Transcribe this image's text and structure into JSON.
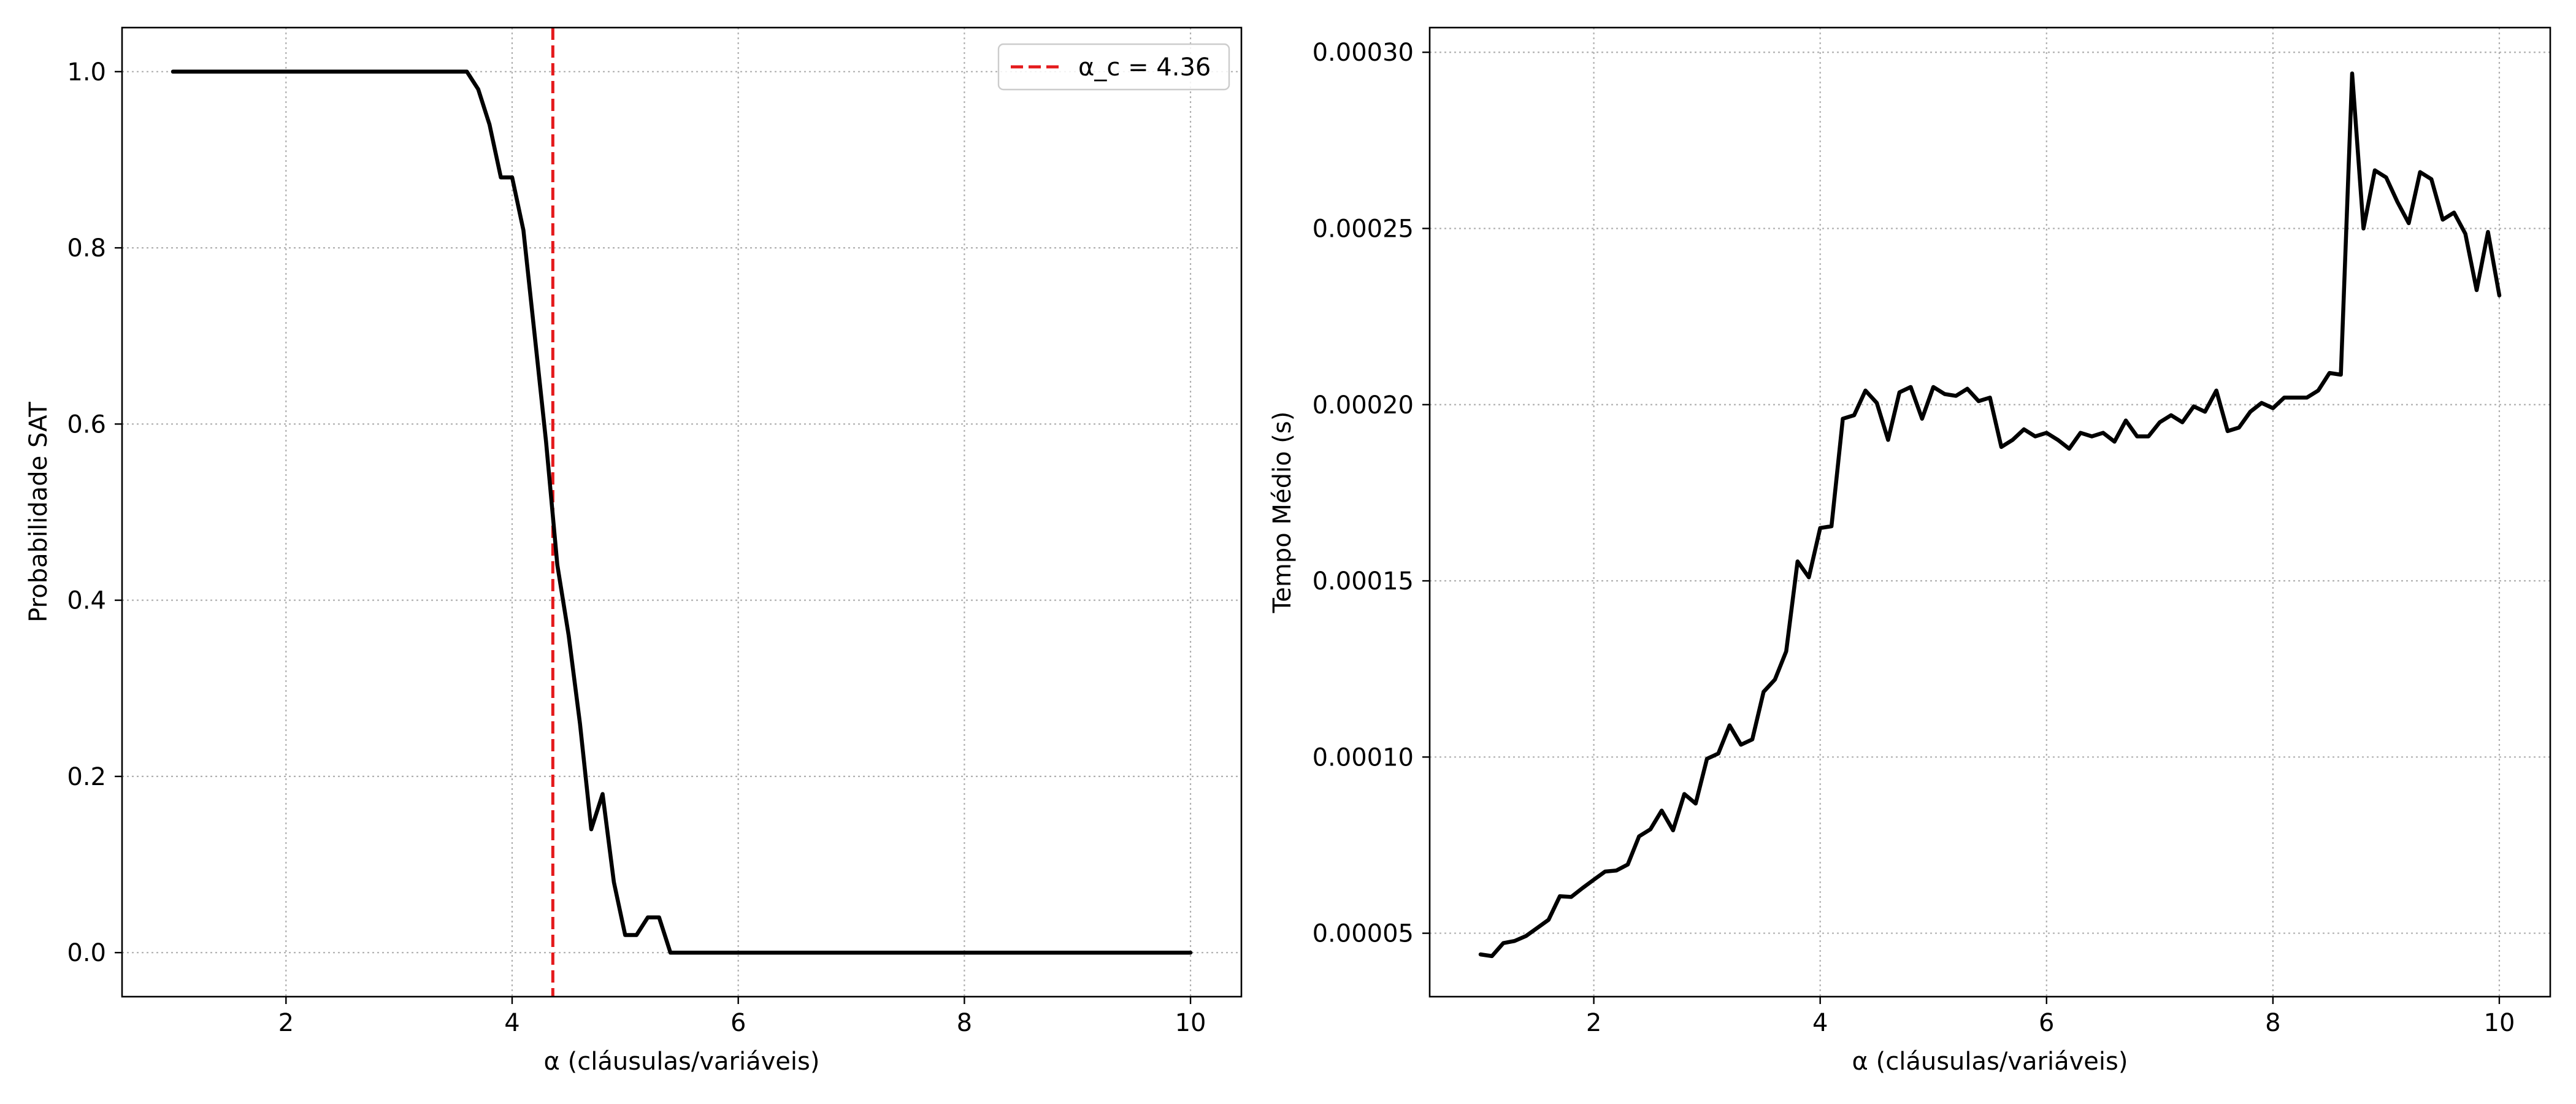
{
  "chart_data": [
    {
      "type": "line",
      "title": "",
      "xlabel": "α (cláusulas/variáveis)",
      "ylabel": "Probabilidade SAT",
      "xlim": [
        0.55,
        10.45
      ],
      "ylim": [
        -0.05,
        1.05
      ],
      "xticks": [
        2,
        4,
        6,
        8,
        10
      ],
      "xtick_labels": [
        "2",
        "4",
        "6",
        "8",
        "10"
      ],
      "yticks": [
        0.0,
        0.2,
        0.4,
        0.6,
        0.8,
        1.0
      ],
      "ytick_labels": [
        "0.0",
        "0.2",
        "0.4",
        "0.6",
        "0.8",
        "1.0"
      ],
      "grid": true,
      "legend": {
        "position": "top-right",
        "entries": [
          "α_c = 4.36"
        ]
      },
      "colors": {
        "series": "#000000",
        "threshold": "#e41a1c",
        "grid": "#b0b0b0"
      },
      "threshold": {
        "x": 4.36,
        "label": "α_c = 4.36",
        "style": "dashed"
      },
      "series": [
        {
          "x": [
            1.0,
            1.1,
            1.2,
            1.3,
            1.4,
            1.5,
            1.6,
            1.7,
            1.8,
            1.9,
            2.0,
            2.1,
            2.2,
            2.3,
            2.4,
            2.5,
            2.6,
            2.7,
            2.8,
            2.9,
            3.0,
            3.1,
            3.2,
            3.3,
            3.4,
            3.5,
            3.6,
            3.7,
            3.8,
            3.9,
            4.0,
            4.1,
            4.2,
            4.3,
            4.4,
            4.5,
            4.6,
            4.7,
            4.8,
            4.9,
            5.0,
            5.1,
            5.2,
            5.3,
            5.4,
            5.5,
            5.6,
            5.7,
            5.8,
            5.9,
            6.0,
            6.1,
            6.2,
            6.3,
            6.4,
            6.5,
            6.6,
            6.7,
            6.8,
            6.9,
            7.0,
            7.1,
            7.2,
            7.3,
            7.4,
            7.5,
            7.6,
            7.7,
            7.8,
            7.9,
            8.0,
            8.1,
            8.2,
            8.3,
            8.4,
            8.5,
            8.6,
            8.7,
            8.8,
            8.9,
            9.0,
            9.1,
            9.2,
            9.3,
            9.4,
            9.5,
            9.6,
            9.7,
            9.8,
            9.9,
            10.0
          ],
          "y": [
            1.0,
            1.0,
            1.0,
            1.0,
            1.0,
            1.0,
            1.0,
            1.0,
            1.0,
            1.0,
            1.0,
            1.0,
            1.0,
            1.0,
            1.0,
            1.0,
            1.0,
            1.0,
            1.0,
            1.0,
            1.0,
            1.0,
            1.0,
            1.0,
            1.0,
            1.0,
            1.0,
            0.98,
            0.94,
            0.88,
            0.88,
            0.82,
            0.7,
            0.58,
            0.44,
            0.36,
            0.26,
            0.14,
            0.18,
            0.08,
            0.02,
            0.02,
            0.04,
            0.04,
            0.0,
            0.0,
            0.0,
            0.0,
            0.0,
            0.0,
            0.0,
            0.0,
            0.0,
            0.0,
            0.0,
            0.0,
            0.0,
            0.0,
            0.0,
            0.0,
            0.0,
            0.0,
            0.0,
            0.0,
            0.0,
            0.0,
            0.0,
            0.0,
            0.0,
            0.0,
            0.0,
            0.0,
            0.0,
            0.0,
            0.0,
            0.0,
            0.0,
            0.0,
            0.0,
            0.0,
            0.0,
            0.0,
            0.0,
            0.0,
            0.0,
            0.0,
            0.0,
            0.0,
            0.0,
            0.0,
            0.0
          ]
        }
      ]
    },
    {
      "type": "line",
      "title": "",
      "xlabel": "α (cláusulas/variáveis)",
      "ylabel": "Tempo Médio (s)",
      "xlim": [
        0.55,
        10.45
      ],
      "ylim": [
        3.2e-05,
        0.000307
      ],
      "xticks": [
        2,
        4,
        6,
        8,
        10
      ],
      "xtick_labels": [
        "2",
        "4",
        "6",
        "8",
        "10"
      ],
      "yticks": [
        5e-05,
        0.0001,
        0.00015,
        0.0002,
        0.00025,
        0.0003
      ],
      "ytick_labels": [
        "0.00005",
        "0.00010",
        "0.00015",
        "0.00020",
        "0.00025",
        "0.00030"
      ],
      "grid": true,
      "colors": {
        "series": "#000000",
        "grid": "#b0b0b0"
      },
      "series": [
        {
          "x": [
            1.0,
            1.1,
            1.2,
            1.3,
            1.4,
            1.5,
            1.6,
            1.7,
            1.8,
            1.9,
            2.0,
            2.1,
            2.2,
            2.3,
            2.4,
            2.5,
            2.6,
            2.7,
            2.8,
            2.9,
            3.0,
            3.1,
            3.2,
            3.3,
            3.4,
            3.5,
            3.6,
            3.7,
            3.8,
            3.9,
            4.0,
            4.1,
            4.2,
            4.3,
            4.4,
            4.5,
            4.6,
            4.7,
            4.8,
            4.9,
            5.0,
            5.1,
            5.2,
            5.3,
            5.4,
            5.5,
            5.6,
            5.7,
            5.8,
            5.9,
            6.0,
            6.1,
            6.2,
            6.3,
            6.4,
            6.5,
            6.6,
            6.7,
            6.8,
            6.9,
            7.0,
            7.1,
            7.2,
            7.3,
            7.4,
            7.5,
            7.6,
            7.7,
            7.8,
            7.9,
            8.0,
            8.1,
            8.2,
            8.3,
            8.4,
            8.5,
            8.6,
            8.7,
            8.8,
            8.9,
            9.0,
            9.1,
            9.2,
            9.3,
            9.4,
            9.5,
            9.6,
            9.7,
            9.8,
            9.9,
            10.0
          ],
          "y": [
            4.4e-05,
            4.35e-05,
            4.72e-05,
            4.78e-05,
            4.92e-05,
            5.15e-05,
            5.38e-05,
            6.05e-05,
            6.03e-05,
            6.28e-05,
            6.52e-05,
            6.75e-05,
            6.78e-05,
            6.95e-05,
            7.75e-05,
            7.95e-05,
            8.48e-05,
            7.92e-05,
            8.95e-05,
            8.68e-05,
            9.95e-05,
            0.000101,
            0.000109,
            0.0001035,
            0.000105,
            0.0001185,
            0.000122,
            0.00013,
            0.0001555,
            0.000151,
            0.000165,
            0.0001655,
            0.000196,
            0.000197,
            0.000204,
            0.0002005,
            0.00019,
            0.0002035,
            0.000205,
            0.000196,
            0.000205,
            0.000203,
            0.0002025,
            0.0002045,
            0.000201,
            0.000202,
            0.000188,
            0.00019,
            0.000193,
            0.000191,
            0.000192,
            0.00019,
            0.0001875,
            0.000192,
            0.000191,
            0.000192,
            0.0001895,
            0.0001955,
            0.000191,
            0.000191,
            0.000195,
            0.000197,
            0.000195,
            0.0001995,
            0.000198,
            0.000204,
            0.0001925,
            0.0001935,
            0.000198,
            0.0002005,
            0.000199,
            0.000202,
            0.000202,
            0.000202,
            0.000204,
            0.000209,
            0.0002085,
            0.000294,
            0.00025,
            0.0002665,
            0.0002645,
            0.0002575,
            0.0002515,
            0.000266,
            0.000264,
            0.0002525,
            0.0002545,
            0.0002485,
            0.0002325,
            0.000249,
            0.000231
          ]
        }
      ]
    }
  ]
}
